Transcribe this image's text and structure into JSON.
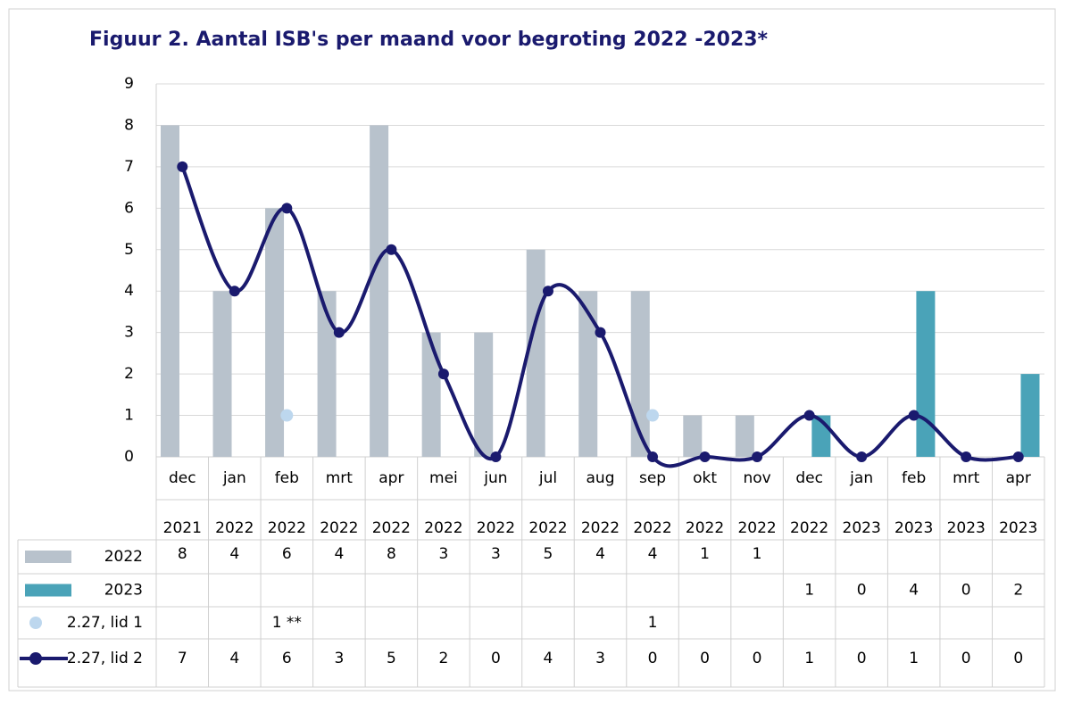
{
  "chart_data": {
    "type": "bar_line_table",
    "title": "Figuur 2. Aantal ISB's per maand voor begroting 2022 -2023*",
    "categories": [
      [
        "dec",
        "2021"
      ],
      [
        "jan",
        "2022"
      ],
      [
        "feb",
        "2022"
      ],
      [
        "mrt",
        "2022"
      ],
      [
        "apr",
        "2022"
      ],
      [
        "mei",
        "2022"
      ],
      [
        "jun",
        "2022"
      ],
      [
        "jul",
        "2022"
      ],
      [
        "aug",
        "2022"
      ],
      [
        "sep",
        "2022"
      ],
      [
        "okt",
        "2022"
      ],
      [
        "nov",
        "2022"
      ],
      [
        "dec",
        "2022"
      ],
      [
        "jan",
        "2023"
      ],
      [
        "feb",
        "2023"
      ],
      [
        "mrt",
        "2023"
      ],
      [
        "apr",
        "2023"
      ]
    ],
    "ylim": [
      0,
      9
    ],
    "yticks": [
      0,
      1,
      2,
      3,
      4,
      5,
      6,
      7,
      8,
      9
    ],
    "grid": true,
    "series": [
      {
        "name": "2022",
        "type": "bar",
        "color": "#b8c2cc",
        "values": [
          8,
          4,
          6,
          4,
          8,
          3,
          3,
          5,
          4,
          4,
          1,
          1,
          null,
          null,
          null,
          null,
          null
        ]
      },
      {
        "name": "2023",
        "type": "bar",
        "color": "#4aa3b8",
        "values": [
          null,
          null,
          null,
          null,
          null,
          null,
          null,
          null,
          null,
          null,
          null,
          null,
          1,
          0,
          4,
          0,
          2
        ]
      },
      {
        "name": "2.27, lid 1",
        "type": "dot",
        "color": "#bdd7ee",
        "values": [
          null,
          null,
          1,
          null,
          null,
          null,
          null,
          null,
          null,
          1,
          null,
          null,
          null,
          null,
          null,
          null,
          null
        ],
        "value_labels": [
          null,
          null,
          "1 **",
          null,
          null,
          null,
          null,
          null,
          null,
          "1",
          null,
          null,
          null,
          null,
          null,
          null,
          null
        ]
      },
      {
        "name": "2.27, lid 2",
        "type": "line",
        "color": "#1a1a6e",
        "values": [
          7,
          4,
          6,
          3,
          5,
          2,
          0,
          4,
          3,
          0,
          0,
          0,
          1,
          0,
          1,
          0,
          0
        ]
      }
    ]
  }
}
